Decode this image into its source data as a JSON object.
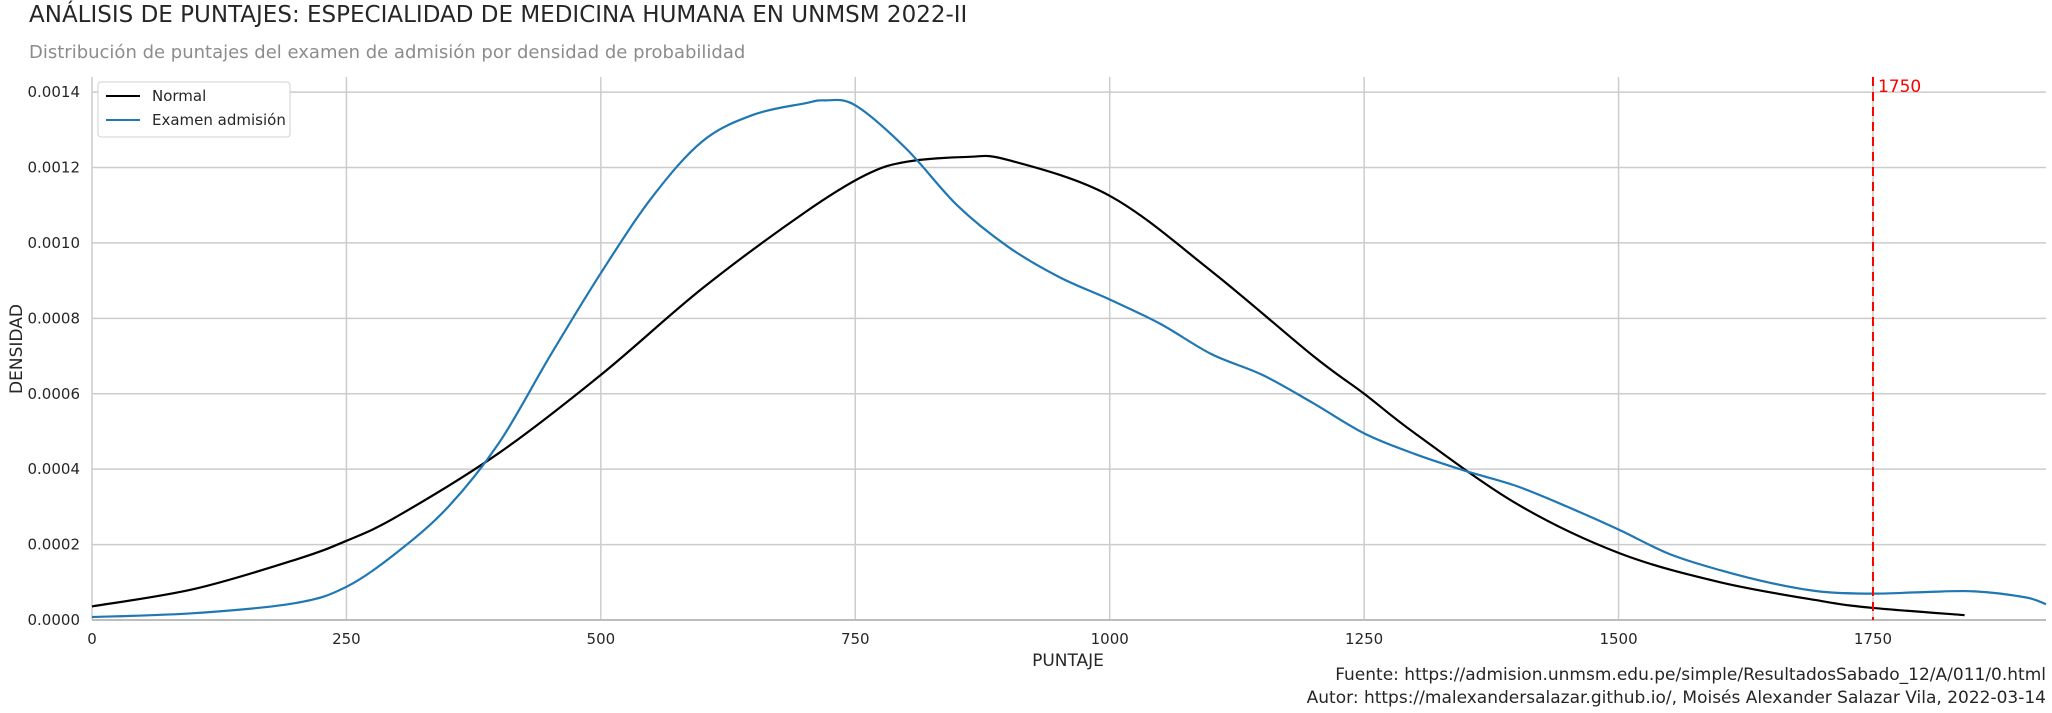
{
  "chart_data": {
    "type": "line",
    "title": "ANÁLISIS DE PUNTAJES: ESPECIALIDAD DE MEDICINA HUMANA EN UNMSM 2022-II",
    "subtitle": "Distribución de puntajes del examen de admisión por densidad de probabilidad",
    "xlabel": "PUNTAJE",
    "ylabel": "DENSIDAD",
    "xlim": [
      0,
      1920
    ],
    "ylim": [
      0,
      0.00144
    ],
    "xticks": [
      0,
      250,
      500,
      750,
      1000,
      1250,
      1500,
      1750
    ],
    "yticks": [
      "0.0000",
      "0.0002",
      "0.0004",
      "0.0006",
      "0.0008",
      "0.0010",
      "0.0012",
      "0.0014"
    ],
    "grid": true,
    "legend_position": "top-left",
    "series": [
      {
        "name": "Normal",
        "color": "#000000",
        "x": [
          0,
          100,
          200,
          250,
          300,
          400,
          500,
          600,
          700,
          760,
          800,
          860,
          900,
          1000,
          1100,
          1200,
          1250,
          1300,
          1400,
          1500,
          1600,
          1700,
          1750,
          1840
        ],
        "y": [
          3.6e-05,
          8.2e-05,
          0.00016,
          0.00021,
          0.000275,
          0.000443,
          0.00065,
          0.00088,
          0.00108,
          0.00118,
          0.001215,
          0.001228,
          0.00122,
          0.001125,
          0.000925,
          0.0007,
          0.0006,
          0.000495,
          0.000308,
          0.000178,
          0.0001,
          5e-05,
          3.2e-05,
          1.3e-05
        ]
      },
      {
        "name": "Examen admisión",
        "color": "#1f77b4",
        "x": [
          0,
          100,
          200,
          250,
          300,
          350,
          400,
          450,
          500,
          550,
          600,
          650,
          700,
          720,
          750,
          800,
          850,
          900,
          950,
          1000,
          1050,
          1100,
          1150,
          1200,
          1250,
          1300,
          1350,
          1400,
          1450,
          1500,
          1550,
          1600,
          1650,
          1700,
          1750,
          1800,
          1850,
          1900,
          1920
        ],
        "y": [
          8e-06,
          1.8e-05,
          4.5e-05,
          8.8e-05,
          0.00018,
          0.0003,
          0.00047,
          0.0007,
          0.00092,
          0.00112,
          0.00127,
          0.00134,
          0.00137,
          0.001378,
          0.001365,
          0.00125,
          0.0011,
          0.00099,
          0.00091,
          0.00085,
          0.000785,
          0.000705,
          0.00065,
          0.000575,
          0.000495,
          0.00044,
          0.000395,
          0.000355,
          0.0003,
          0.00024,
          0.000175,
          0.000132,
          9.8e-05,
          7.5e-05,
          7e-05,
          7.4e-05,
          7.6e-05,
          6e-05,
          4.2e-05
        ]
      }
    ],
    "annotations": [
      {
        "type": "vline",
        "x": 1750,
        "label": "1750",
        "color": "#ff0000",
        "style": "dashed"
      }
    ]
  },
  "footer": {
    "source": "Fuente: https://admision.unmsm.edu.pe/simple/ResultadosSabado_12/A/011/0.html",
    "author": "Autor: https://malexandersalazar.github.io/, Moisés Alexander Salazar Vila, 2022-03-14"
  }
}
